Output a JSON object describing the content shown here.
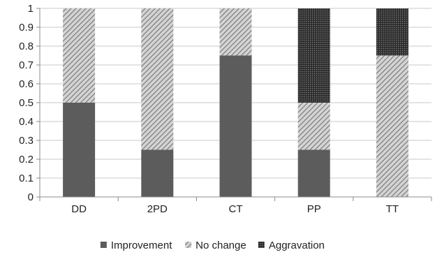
{
  "chart_data": {
    "type": "bar",
    "stacked": true,
    "categories": [
      "DD",
      "2PD",
      "CT",
      "PP",
      "TT"
    ],
    "series": [
      {
        "name": "Improvement",
        "values": [
          0.5,
          0.25,
          0.75,
          0.25,
          0.0
        ],
        "color": "#5c5c5c",
        "pattern": "solid"
      },
      {
        "name": "No change",
        "values": [
          0.5,
          0.75,
          0.25,
          0.25,
          0.75
        ],
        "color": "#8a8a8a",
        "pattern": "diagonal-hatch"
      },
      {
        "name": "Aggravation",
        "values": [
          0.0,
          0.0,
          0.0,
          0.5,
          0.25
        ],
        "color": "#3c3c3c",
        "pattern": "dense-dots"
      }
    ],
    "yticks": [
      "0",
      "0.1",
      "0.2",
      "0.3",
      "0.4",
      "0.5",
      "0.6",
      "0.7",
      "0.8",
      "0.9",
      "1"
    ],
    "ylim": [
      0,
      1
    ],
    "grid": true,
    "legend": "bottom"
  }
}
